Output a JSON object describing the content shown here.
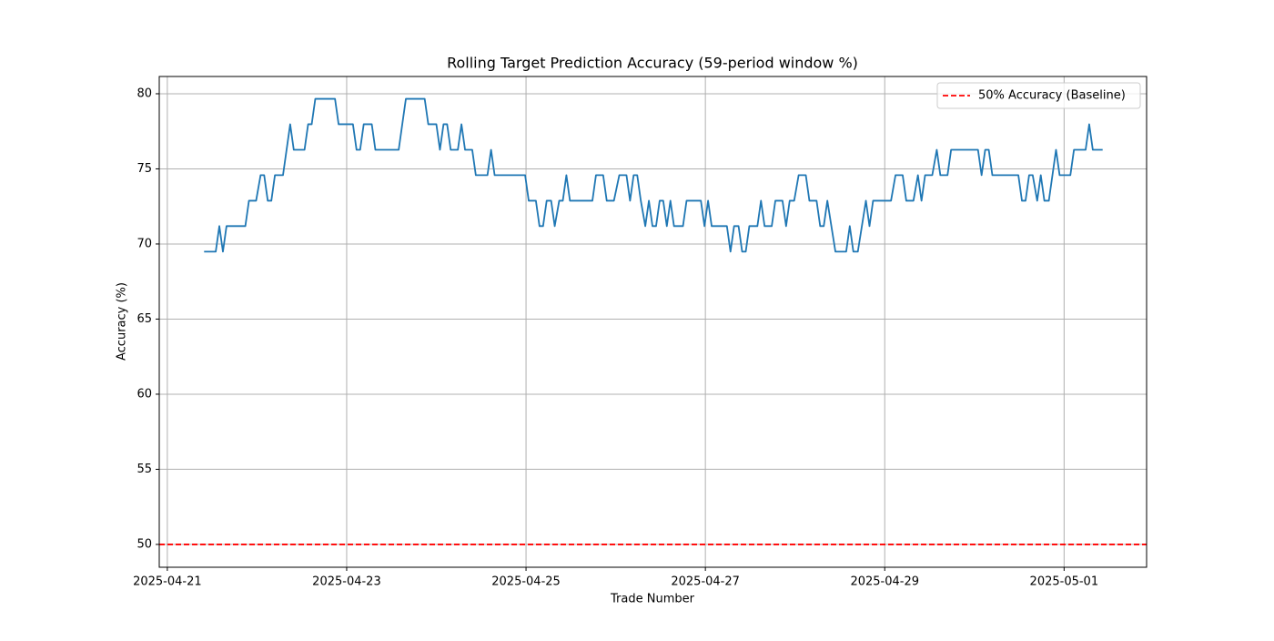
{
  "chart_data": {
    "type": "line",
    "title": "Rolling Target Prediction Accuracy (59-period window %)",
    "x_label": "Trade Number",
    "y_label": "Accuracy (%)",
    "grid": true,
    "legend": "upper right",
    "xlim": [
      20198.91,
      20209.92
    ],
    "ylim": [
      48.48,
      81.15
    ],
    "xticks": [
      {
        "value": 20199,
        "label": "2025-04-21"
      },
      {
        "value": 20201,
        "label": "2025-04-23"
      },
      {
        "value": 20203,
        "label": "2025-04-25"
      },
      {
        "value": 20205,
        "label": "2025-04-27"
      },
      {
        "value": 20207,
        "label": "2025-04-29"
      },
      {
        "value": 20209,
        "label": "2025-05-01"
      }
    ],
    "yticks": [
      50,
      55,
      60,
      65,
      70,
      75,
      80
    ],
    "x": [
      20199.41,
      20199.54,
      20199.58,
      20199.62,
      20199.66,
      20199.87,
      20199.91,
      20199.99,
      20200.04,
      20200.08,
      20200.12,
      20200.16,
      20200.2,
      20200.29,
      20200.37,
      20200.41,
      20200.53,
      20200.57,
      20200.61,
      20200.65,
      20200.87,
      20200.91,
      20201.07,
      20201.11,
      20201.15,
      20201.19,
      20201.28,
      20201.32,
      20201.58,
      20201.66,
      20201.87,
      20201.91,
      20202.0,
      20202.04,
      20202.08,
      20202.12,
      20202.16,
      20202.24,
      20202.28,
      20202.32,
      20202.4,
      20202.44,
      20202.57,
      20202.61,
      20202.65,
      20202.99,
      20203.03,
      20203.11,
      20203.15,
      20203.19,
      20203.23,
      20203.28,
      20203.32,
      20203.37,
      20203.41,
      20203.45,
      20203.49,
      20203.74,
      20203.78,
      20203.86,
      20203.9,
      20203.98,
      20204.04,
      20204.12,
      20204.16,
      20204.2,
      20204.24,
      20204.28,
      20204.33,
      20204.37,
      20204.41,
      20204.45,
      20204.49,
      20204.53,
      20204.57,
      20204.61,
      20204.65,
      20204.75,
      20204.79,
      20204.95,
      20204.99,
      20205.03,
      20205.07,
      20205.24,
      20205.28,
      20205.32,
      20205.37,
      20205.41,
      20205.45,
      20205.49,
      20205.58,
      20205.62,
      20205.66,
      20205.74,
      20205.78,
      20205.86,
      20205.9,
      20205.94,
      20205.99,
      20206.04,
      20206.12,
      20206.16,
      20206.24,
      20206.28,
      20206.32,
      20206.36,
      20206.45,
      20206.57,
      20206.61,
      20206.65,
      20206.7,
      20206.79,
      20206.83,
      20206.87,
      20207.07,
      20207.12,
      20207.2,
      20207.24,
      20207.32,
      20207.37,
      20207.41,
      20207.45,
      20207.53,
      20207.58,
      20207.62,
      20207.7,
      20207.74,
      20208.04,
      20208.08,
      20208.12,
      20208.16,
      20208.2,
      20208.49,
      20208.53,
      20208.57,
      20208.61,
      20208.65,
      20208.7,
      20208.74,
      20208.78,
      20208.83,
      20208.91,
      20208.95,
      20209.07,
      20209.11,
      20209.24,
      20209.28,
      20209.32,
      20209.43
    ],
    "series": [
      {
        "color": "#1f77b4",
        "values": [
          69.49,
          69.49,
          71.19,
          69.49,
          71.19,
          71.19,
          72.88,
          72.88,
          74.58,
          74.58,
          72.88,
          72.88,
          74.58,
          74.58,
          77.97,
          76.27,
          76.27,
          77.97,
          77.97,
          79.66,
          79.66,
          77.97,
          77.97,
          76.27,
          76.27,
          77.97,
          77.97,
          76.27,
          76.27,
          79.66,
          79.66,
          77.97,
          77.97,
          76.27,
          77.97,
          77.97,
          76.27,
          76.27,
          77.97,
          76.27,
          76.27,
          74.58,
          74.58,
          76.27,
          74.58,
          74.58,
          72.88,
          72.88,
          71.19,
          71.19,
          72.88,
          72.88,
          71.19,
          72.88,
          72.88,
          74.58,
          72.88,
          72.88,
          74.58,
          74.58,
          72.88,
          72.88,
          74.58,
          74.58,
          72.88,
          74.58,
          74.58,
          72.88,
          71.19,
          72.88,
          71.19,
          71.19,
          72.88,
          72.88,
          71.19,
          72.88,
          71.19,
          71.19,
          72.88,
          72.88,
          71.19,
          72.88,
          71.19,
          71.19,
          69.49,
          71.19,
          71.19,
          69.49,
          69.49,
          71.19,
          71.19,
          72.88,
          71.19,
          71.19,
          72.88,
          72.88,
          71.19,
          72.88,
          72.88,
          74.58,
          74.58,
          72.88,
          72.88,
          71.19,
          71.19,
          72.88,
          69.49,
          69.49,
          71.19,
          69.49,
          69.49,
          72.88,
          71.19,
          72.88,
          72.88,
          74.58,
          74.58,
          72.88,
          72.88,
          74.58,
          72.88,
          74.58,
          74.58,
          76.27,
          74.58,
          74.58,
          76.27,
          76.27,
          74.58,
          76.27,
          76.27,
          74.58,
          74.58,
          72.88,
          72.88,
          74.58,
          74.58,
          72.88,
          74.58,
          72.88,
          72.88,
          76.27,
          74.58,
          74.58,
          76.27,
          76.27,
          77.97,
          76.27,
          76.27
        ]
      }
    ],
    "hlines": [
      {
        "name": "50% Accuracy (Baseline)",
        "value": 50,
        "color": "#ff0000",
        "style": "dashed"
      }
    ]
  }
}
